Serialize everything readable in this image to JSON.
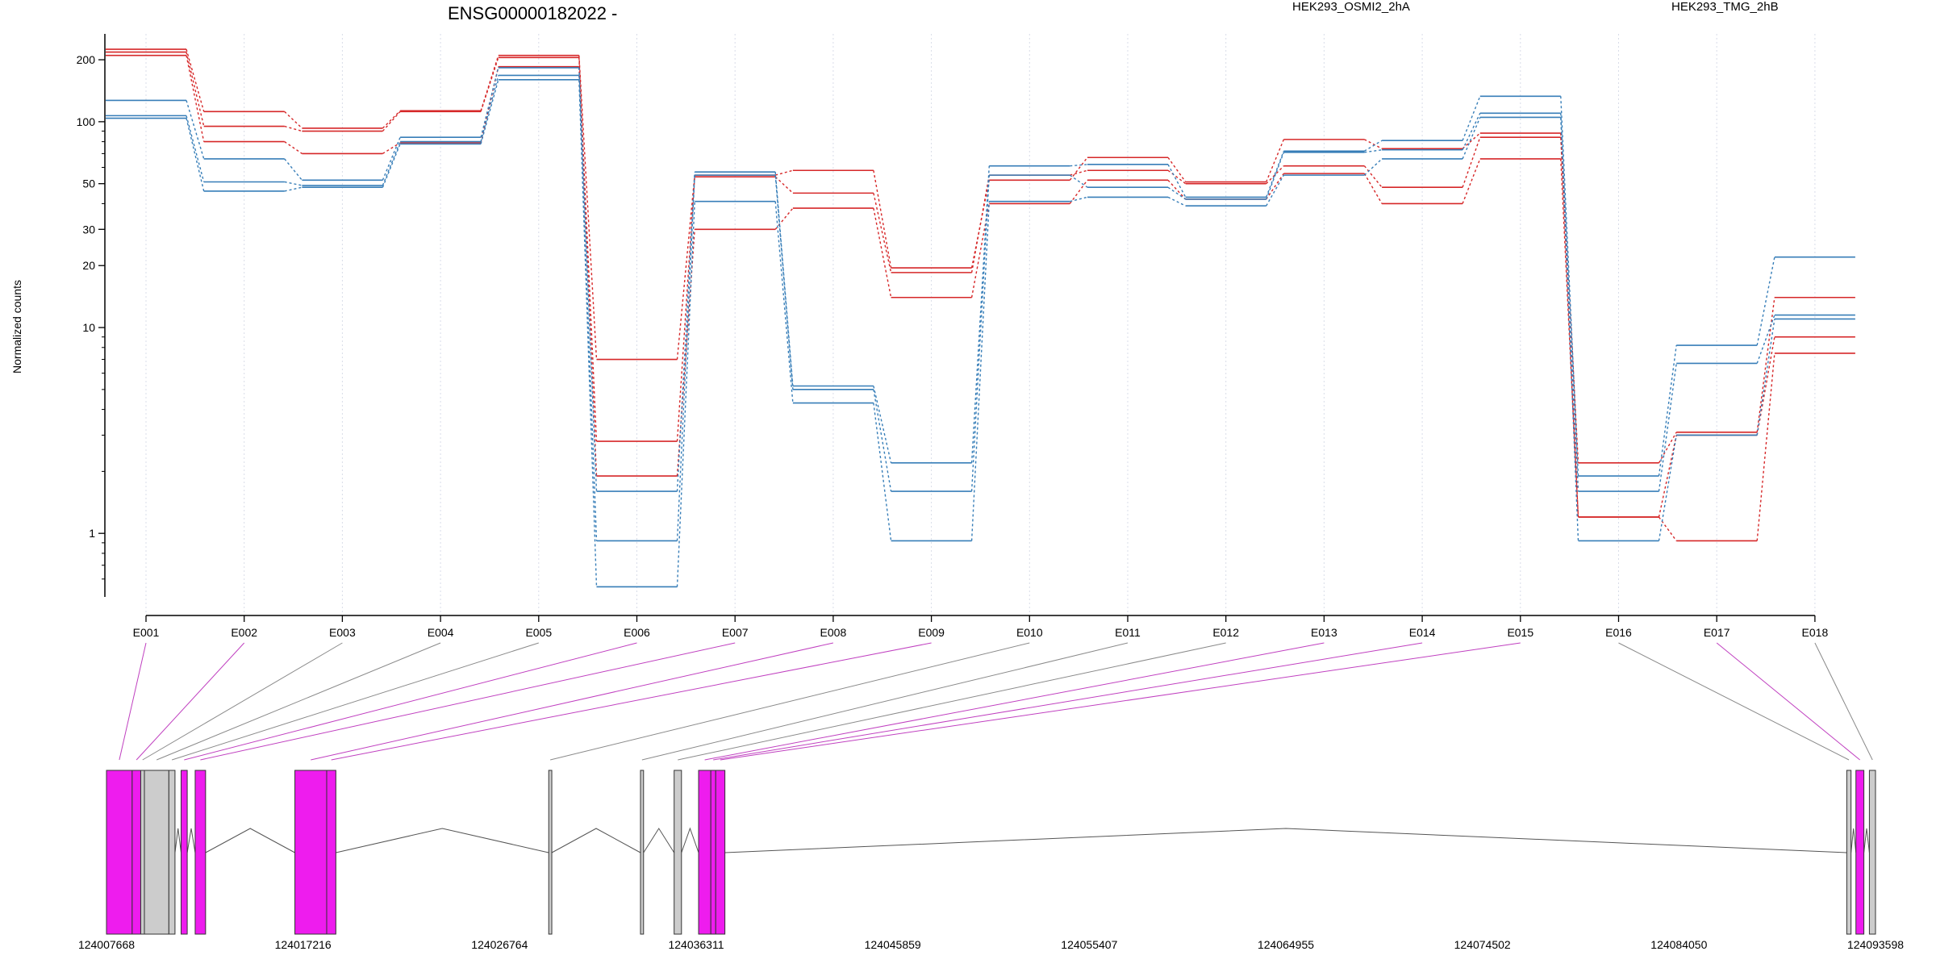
{
  "chart_data": {
    "type": "line",
    "title": "ENSG00000182022 -",
    "ylabel": "Normalized counts",
    "xlabel": "",
    "yscale": "log",
    "ylim": [
      0.5,
      260
    ],
    "yticks": [
      {
        "value": 1,
        "label": "1"
      },
      {
        "value": 10,
        "label": "10"
      },
      {
        "value": 20,
        "label": "20"
      },
      {
        "value": 30,
        "label": "30"
      },
      {
        "value": 50,
        "label": "50"
      },
      {
        "value": 100,
        "label": "100"
      },
      {
        "value": 200,
        "label": "200"
      }
    ],
    "yminor": [
      0.6,
      0.7,
      0.8,
      0.9,
      2,
      3,
      4,
      5,
      6,
      7,
      8,
      9,
      40,
      60,
      70,
      80,
      90
    ],
    "exons": [
      "E001",
      "E002",
      "E003",
      "E004",
      "E005",
      "E006",
      "E007",
      "E008",
      "E009",
      "E010",
      "E011",
      "E012",
      "E013",
      "E014",
      "E015",
      "E016",
      "E017",
      "E018"
    ],
    "grid": "vertical dotted at exon positions",
    "legend": [
      {
        "label": "HEK293_OSMI2_2hA",
        "color": "#d62728"
      },
      {
        "label": "HEK293_TMG_2hB",
        "color": "#377eb8"
      }
    ],
    "series": [
      {
        "group": "HEK293_OSMI2_2hA",
        "color": "#d62728",
        "values": [
          225,
          112,
          93,
          113,
          210,
          7.0,
          55,
          58,
          19.5,
          52,
          67,
          51,
          82,
          74,
          88,
          2.2,
          3.1,
          14
        ]
      },
      {
        "group": "HEK293_OSMI2_2hA",
        "color": "#d62728",
        "values": [
          218,
          95,
          90,
          112,
          205,
          2.8,
          54,
          45,
          18.5,
          55,
          58,
          50,
          61,
          48,
          84,
          1.2,
          3.0,
          9
        ]
      },
      {
        "group": "HEK293_OSMI2_2hA",
        "color": "#d62728",
        "values": [
          210,
          80,
          70,
          79,
          185,
          1.9,
          30,
          38,
          14,
          40,
          52,
          42,
          56,
          40,
          66,
          1.2,
          0.92,
          7.5
        ]
      },
      {
        "group": "HEK293_TMG_2hB",
        "color": "#377eb8",
        "values": [
          127,
          66,
          52,
          84,
          183,
          1.6,
          57,
          5.2,
          2.2,
          61,
          62,
          43,
          72,
          81,
          133,
          1.9,
          8.2,
          22
        ]
      },
      {
        "group": "HEK293_TMG_2hB",
        "color": "#377eb8",
        "values": [
          107,
          51,
          49,
          80,
          168,
          0.92,
          55,
          5.0,
          1.6,
          55,
          48,
          42,
          71,
          73,
          110,
          1.6,
          6.7,
          11.5
        ]
      },
      {
        "group": "HEK293_TMG_2hB",
        "color": "#377eb8",
        "values": [
          104,
          46,
          48,
          78,
          160,
          0.55,
          41,
          4.3,
          0.92,
          41,
          43,
          39,
          55,
          66,
          105,
          0.92,
          3.0,
          11
        ]
      }
    ],
    "gene_model": {
      "coordinate_ticks": [
        "124007668",
        "124017216",
        "124026764",
        "124036311",
        "124045859",
        "124055407",
        "124064955",
        "124074502",
        "124084050",
        "124093598"
      ],
      "exon_blocks": [
        {
          "exon": "E001",
          "start": 0.0,
          "end": 0.42,
          "highlight": true
        },
        {
          "exon": "E002",
          "start": 0.42,
          "end": 0.56,
          "highlight": true
        },
        {
          "exon": "E003",
          "start": 0.56,
          "end": 0.62,
          "highlight": false
        },
        {
          "exon": "E004",
          "start": 0.62,
          "end": 1.02,
          "highlight": false
        },
        {
          "exon": "E005",
          "start": 1.02,
          "end": 1.12,
          "highlight": false
        },
        {
          "exon": "E006",
          "start": 1.22,
          "end": 1.32,
          "highlight": true
        },
        {
          "exon": "E007",
          "start": 1.45,
          "end": 1.62,
          "highlight": true
        },
        {
          "exon": "E008",
          "start": 3.08,
          "end": 3.6,
          "highlight": true
        },
        {
          "exon": "E009",
          "start": 3.6,
          "end": 3.75,
          "highlight": true
        },
        {
          "exon": "E010",
          "start": 7.23,
          "end": 7.28,
          "highlight": false
        },
        {
          "exon": "E011",
          "start": 8.73,
          "end": 8.78,
          "highlight": false
        },
        {
          "exon": "E012",
          "start": 9.28,
          "end": 9.4,
          "highlight": false
        },
        {
          "exon": "E013",
          "start": 9.68,
          "end": 9.88,
          "highlight": true
        },
        {
          "exon": "E014",
          "start": 9.88,
          "end": 9.96,
          "highlight": true
        },
        {
          "exon": "E015",
          "start": 9.96,
          "end": 10.11,
          "highlight": true
        },
        {
          "exon": "E016",
          "start": 28.45,
          "end": 28.52,
          "highlight": false
        },
        {
          "exon": "E017",
          "start": 28.6,
          "end": 28.73,
          "highlight": true
        },
        {
          "exon": "E018",
          "start": 28.82,
          "end": 28.92,
          "highlight": false
        }
      ],
      "coordinate_span": [
        0,
        28.92
      ]
    }
  }
}
